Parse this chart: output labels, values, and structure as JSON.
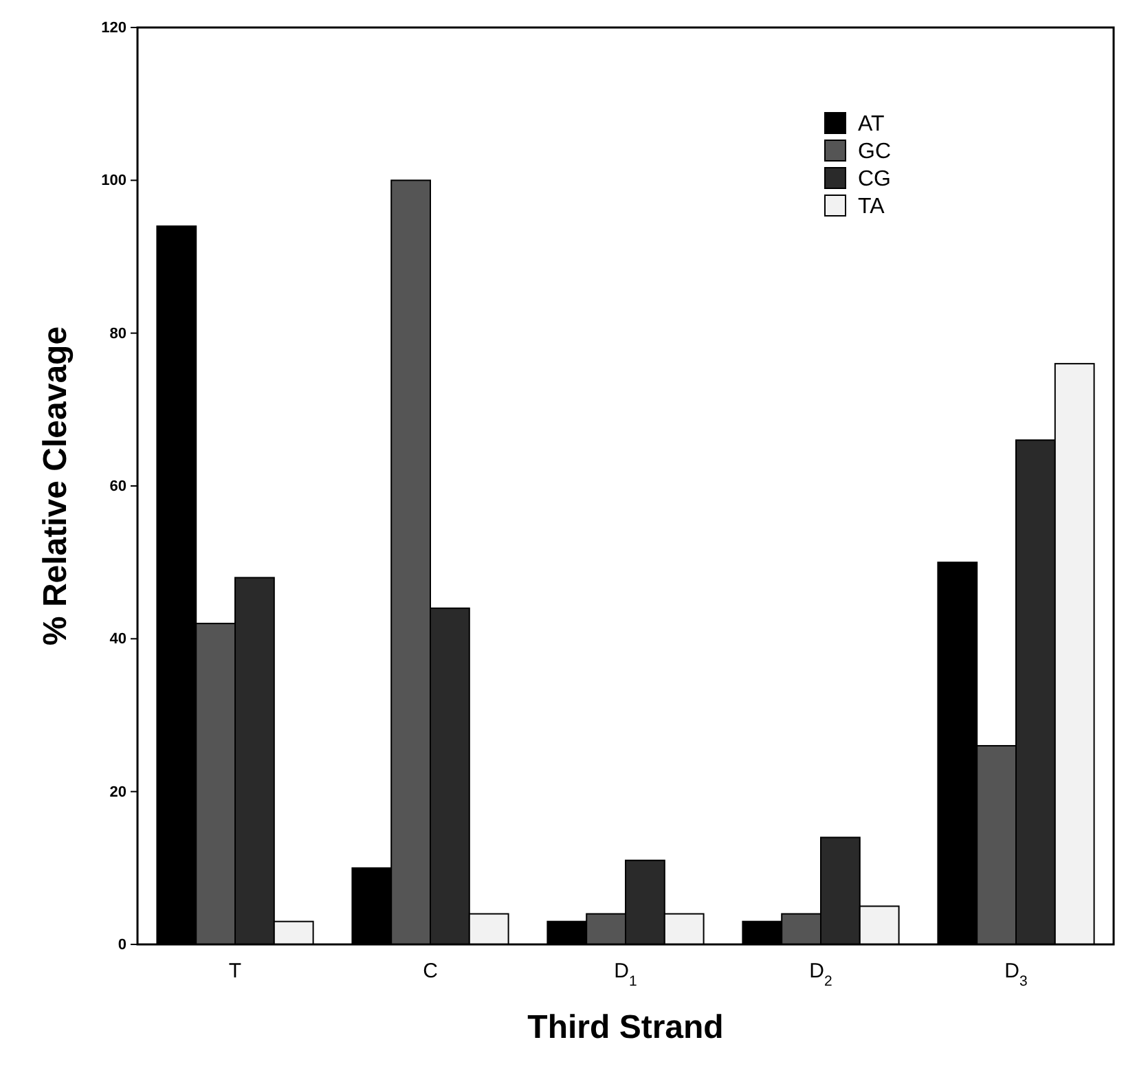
{
  "chart_data": {
    "type": "bar",
    "xlabel": "Third Strand",
    "ylabel": "% Relative Cleavage",
    "categories": [
      "T",
      "C",
      "D$_{1}$",
      "D$_{2}$",
      "D$_{3}$"
    ],
    "series": [
      {
        "name": "AT",
        "color": "#000000",
        "values": [
          94,
          10,
          3,
          3,
          50
        ]
      },
      {
        "name": "GC",
        "color": "#555555",
        "values": [
          42,
          100,
          4,
          4,
          26
        ]
      },
      {
        "name": "CG",
        "color": "#2a2a2a",
        "values": [
          48,
          44,
          11,
          14,
          66
        ]
      },
      {
        "name": "TA",
        "color": "#f2f2f2",
        "values": [
          3,
          4,
          4,
          5,
          76
        ]
      }
    ],
    "ylim": [
      0,
      120
    ],
    "yticks": [
      0,
      20,
      40,
      60,
      80,
      100,
      120
    ],
    "grid": false,
    "legend": "top right"
  }
}
